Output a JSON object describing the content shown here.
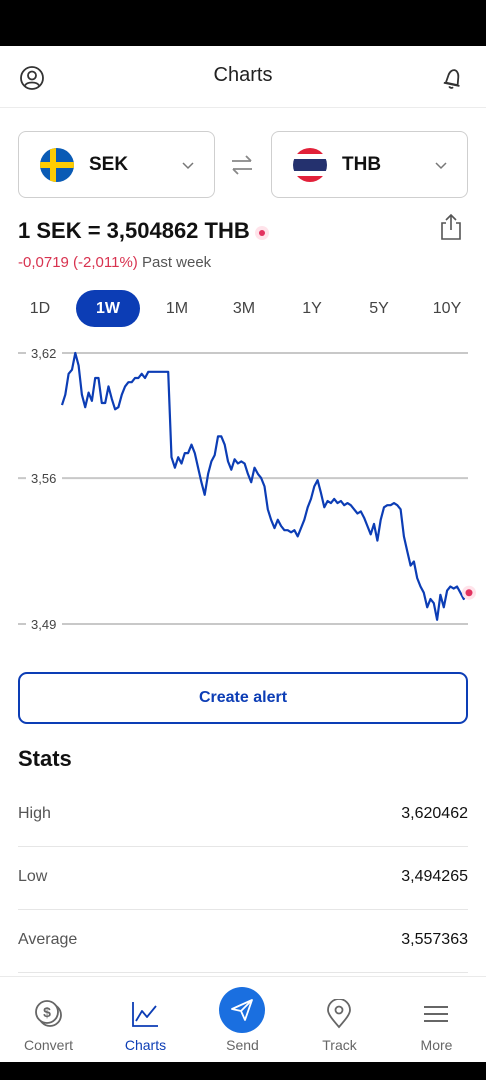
{
  "header": {
    "title": "Charts"
  },
  "from_currency": {
    "code": "SEK",
    "flag": "sweden-flag-icon"
  },
  "to_currency": {
    "code": "THB",
    "flag": "thailand-flag-icon"
  },
  "rate": {
    "text": "1 SEK = 3,504862 THB"
  },
  "change": {
    "value": "-0,0719 (-2,011%)",
    "period": "Past week"
  },
  "ranges": [
    "1D",
    "1W",
    "1M",
    "3M",
    "1Y",
    "5Y",
    "10Y"
  ],
  "active_range": "1W",
  "chart_data": {
    "type": "line",
    "y_ticks": [
      "3,62",
      "3,56",
      "3,49"
    ],
    "y_tick_values": [
      3.62,
      3.56,
      3.49
    ],
    "ylim": [
      3.49,
      3.62
    ],
    "grid": true,
    "line_color": "#0c3db5",
    "series": [
      {
        "values": [
          3.595,
          3.6,
          3.61,
          3.612,
          3.62,
          3.614,
          3.6,
          3.594,
          3.601,
          3.597,
          3.608,
          3.608,
          3.596,
          3.596,
          3.604,
          3.598,
          3.593,
          3.594,
          3.6,
          3.604,
          3.606,
          3.606,
          3.608,
          3.608,
          3.61,
          3.608,
          3.611,
          3.611,
          3.611,
          3.611,
          3.611,
          3.611,
          3.611,
          3.57,
          3.565,
          3.57,
          3.567,
          3.572,
          3.572,
          3.576,
          3.572,
          3.565,
          3.558,
          3.552,
          3.562,
          3.568,
          3.571,
          3.58,
          3.58,
          3.576,
          3.568,
          3.564,
          3.569,
          3.567,
          3.568,
          3.567,
          3.562,
          3.558,
          3.565,
          3.562,
          3.56,
          3.556,
          3.545,
          3.54,
          3.536,
          3.54,
          3.537,
          3.535,
          3.535,
          3.534,
          3.535,
          3.532,
          3.536,
          3.54,
          3.546,
          3.55,
          3.556,
          3.559,
          3.553,
          3.546,
          3.549,
          3.548,
          3.55,
          3.548,
          3.549,
          3.547,
          3.548,
          3.547,
          3.545,
          3.543,
          3.544,
          3.541,
          3.537,
          3.533,
          3.538,
          3.53,
          3.54,
          3.546,
          3.547,
          3.547,
          3.548,
          3.547,
          3.545,
          3.532,
          3.525,
          3.518,
          3.52,
          3.512,
          3.508,
          3.505,
          3.498,
          3.502,
          3.5,
          3.492,
          3.504,
          3.498,
          3.506,
          3.508,
          3.507,
          3.508,
          3.505,
          3.502,
          3.505
        ]
      }
    ]
  },
  "alert_button": {
    "label": "Create alert"
  },
  "stats": {
    "title": "Stats",
    "rows": [
      {
        "label": "High",
        "value": "3,620462"
      },
      {
        "label": "Low",
        "value": "3,494265"
      },
      {
        "label": "Average",
        "value": "3,557363"
      }
    ]
  },
  "tabs": [
    {
      "label": "Convert",
      "icon": "coins-icon"
    },
    {
      "label": "Charts",
      "icon": "chart-line-icon"
    },
    {
      "label": "Send",
      "icon": "paper-plane-icon"
    },
    {
      "label": "Track",
      "icon": "location-pin-icon"
    },
    {
      "label": "More",
      "icon": "menu-icon"
    }
  ],
  "active_tab": "Charts",
  "colors": {
    "accent": "#0c3db5",
    "negative": "#d8324f",
    "send": "#1a6fe0"
  }
}
